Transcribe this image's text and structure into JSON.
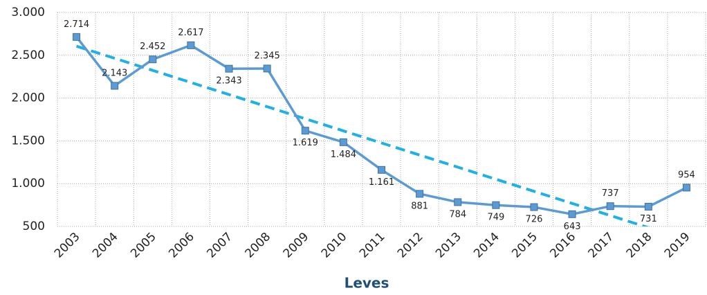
{
  "chart_data": {
    "type": "line",
    "title": "Leves",
    "categories": [
      "2003",
      "2004",
      "2005",
      "2006",
      "2007",
      "2008",
      "2009",
      "2010",
      "2011",
      "2012",
      "2013",
      "2014",
      "2015",
      "2016",
      "2017",
      "2018",
      "2019"
    ],
    "values": [
      2714,
      2143,
      2452,
      2617,
      2343,
      2345,
      1619,
      1484,
      1161,
      881,
      784,
      749,
      726,
      643,
      737,
      731,
      954
    ],
    "value_labels": [
      "2.714",
      "2.143",
      "2.452",
      "2.617",
      "2.343",
      "2.345",
      "1.619",
      "1.484",
      "1.161",
      "881",
      "784",
      "749",
      "726",
      "643",
      "737",
      "731",
      "954"
    ],
    "color": "#5b9bd5",
    "trendline": {
      "type": "linear",
      "color": "#1fb0e6"
    },
    "ylim": [
      500,
      3000
    ],
    "yticks": [
      500,
      {
        "value": 1000,
        "label": "1.000"
      },
      {
        "value": 1500,
        "label": "1.500"
      },
      {
        "value": 2000,
        "label": "2.000"
      },
      {
        "value": 2500,
        "label": "2.500"
      },
      {
        "value": 3000,
        "label": "3.000"
      }
    ],
    "grid": true
  }
}
